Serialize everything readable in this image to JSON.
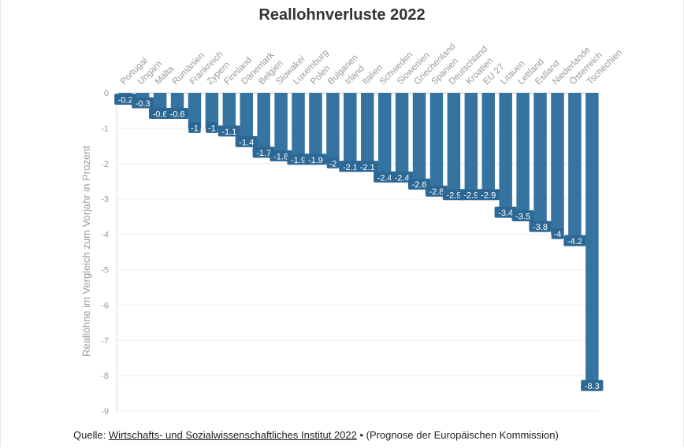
{
  "chart_data": {
    "type": "bar",
    "title": "Reallohnverluste 2022",
    "ylabel": "Reallöhne im Vergleich zum Vorjahr in Prozent",
    "xlabel": "",
    "ylim": [
      -9,
      0
    ],
    "yticks": [
      0,
      -1,
      -2,
      -3,
      -4,
      -5,
      -6,
      -7,
      -8,
      -9
    ],
    "grid": true,
    "color": "#3574a1",
    "categories": [
      "Portugal",
      "Ungarn",
      "Malta",
      "Rumänien",
      "Frankreich",
      "Zypern",
      "Finnland",
      "Dänemark",
      "Belgien",
      "Slowakei",
      "Luxemburg",
      "Polen",
      "Bulgarien",
      "Irland",
      "Italien",
      "Schweden",
      "Slowenien",
      "Griechenland",
      "Spanien",
      "Deutschland",
      "Kroatien",
      "EU 27",
      "Litauen",
      "Lettland",
      "Estland",
      "Niederlande",
      "Österreich",
      "Tschechien"
    ],
    "values": [
      -0.2,
      -0.3,
      -0.6,
      -0.6,
      -1,
      -1,
      -1.1,
      -1.4,
      -1.7,
      -1.8,
      -1.9,
      -1.9,
      -2,
      -2.1,
      -2.1,
      -2.4,
      -2.4,
      -2.6,
      -2.8,
      -2.9,
      -2.9,
      -2.9,
      -3.4,
      -3.5,
      -3.8,
      -4,
      -4.2,
      -8.3
    ]
  },
  "source": {
    "prefix": "Quelle: ",
    "link_text": "Wirtschafts- und Sozialwissenschaftliches Institut 2022",
    "separator": " • ",
    "note": "(Prognose der Europäischen Kommission)"
  }
}
